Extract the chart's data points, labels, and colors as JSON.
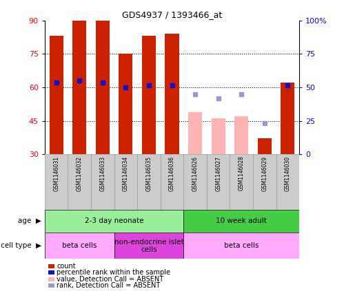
{
  "title": "GDS4937 / 1393466_at",
  "samples": [
    "GSM1146031",
    "GSM1146032",
    "GSM1146033",
    "GSM1146034",
    "GSM1146035",
    "GSM1146036",
    "GSM1146026",
    "GSM1146027",
    "GSM1146028",
    "GSM1146029",
    "GSM1146030"
  ],
  "bar_values": [
    83,
    90,
    90,
    75,
    83,
    84,
    49,
    46,
    47,
    37,
    62
  ],
  "bar_absent": [
    false,
    false,
    false,
    false,
    false,
    false,
    true,
    true,
    true,
    false,
    false
  ],
  "rank_values": [
    62,
    63,
    62,
    60,
    61,
    61,
    null,
    null,
    null,
    null,
    61
  ],
  "absent_rank_values": [
    null,
    null,
    null,
    null,
    null,
    null,
    57,
    55,
    57,
    44,
    null
  ],
  "ylim": [
    30,
    90
  ],
  "yticks": [
    30,
    45,
    60,
    75,
    90
  ],
  "right_yticks": [
    0,
    25,
    50,
    75,
    100
  ],
  "right_yticklabels": [
    "0",
    "25",
    "50",
    "75",
    "100%"
  ],
  "bar_color_present": "#cc2200",
  "bar_color_absent": "#ffb3b3",
  "rank_color_present": "#1111cc",
  "rank_color_absent": "#9999cc",
  "grid_yticks": [
    45,
    60,
    75
  ],
  "age_groups": [
    {
      "label": "2-3 day neonate",
      "start": 0,
      "end": 6,
      "color": "#99ee99"
    },
    {
      "label": "10 week adult",
      "start": 6,
      "end": 11,
      "color": "#44cc44"
    }
  ],
  "cell_type_groups": [
    {
      "label": "beta cells",
      "start": 0,
      "end": 3,
      "color": "#ffaaff"
    },
    {
      "label": "non-endocrine islet\ncells",
      "start": 3,
      "end": 6,
      "color": "#dd44dd"
    },
    {
      "label": "beta cells",
      "start": 6,
      "end": 11,
      "color": "#ffaaff"
    }
  ],
  "legend_items": [
    {
      "color": "#cc2200",
      "label": "count",
      "marker": "s"
    },
    {
      "color": "#1111cc",
      "label": "percentile rank within the sample",
      "marker": "s"
    },
    {
      "color": "#ffb3b3",
      "label": "value, Detection Call = ABSENT",
      "marker": "s"
    },
    {
      "color": "#9999cc",
      "label": "rank, Detection Call = ABSENT",
      "marker": "s"
    }
  ]
}
